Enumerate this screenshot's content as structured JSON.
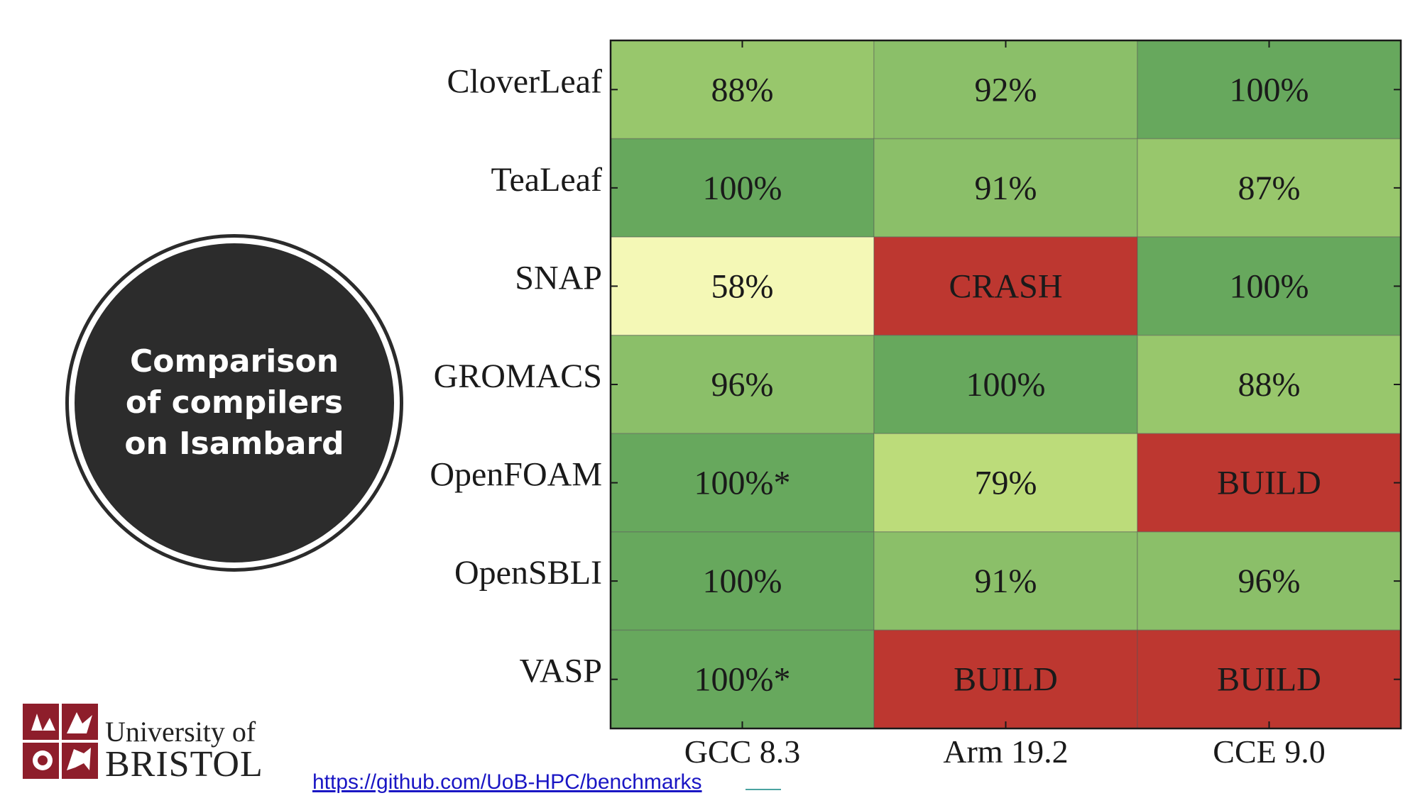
{
  "title_badge": {
    "text": "Comparison\nof compilers\non Isambard"
  },
  "logo": {
    "line1": "University of",
    "line2": "BRISTOL",
    "icon": "university-crest-icon"
  },
  "footer": {
    "link": "https://github.com/UoB-HPC/benchmarks"
  },
  "colors": {
    "highest": "#67a85d",
    "high": "#8bbf69",
    "mid_high": "#98c76c",
    "mid": "#bcdc7a",
    "low": "#f4f8b6",
    "failure": "#bd3730"
  },
  "chart_data": {
    "type": "heatmap",
    "rows": [
      "CloverLeaf",
      "TeaLeaf",
      "SNAP",
      "GROMACS",
      "OpenFOAM",
      "OpenSBLI",
      "VASP"
    ],
    "columns": [
      "GCC 8.3",
      "Arm 19.2",
      "CCE 9.0"
    ],
    "cells": [
      [
        {
          "label": "88%",
          "value": 88
        },
        {
          "label": "92%",
          "value": 92
        },
        {
          "label": "100%",
          "value": 100
        }
      ],
      [
        {
          "label": "100%",
          "value": 100
        },
        {
          "label": "91%",
          "value": 91
        },
        {
          "label": "87%",
          "value": 87
        }
      ],
      [
        {
          "label": "58%",
          "value": 58
        },
        {
          "label": "CRASH",
          "value": null
        },
        {
          "label": "100%",
          "value": 100
        }
      ],
      [
        {
          "label": "96%",
          "value": 96
        },
        {
          "label": "100%",
          "value": 100
        },
        {
          "label": "88%",
          "value": 88
        }
      ],
      [
        {
          "label": "100%*",
          "value": 100
        },
        {
          "label": "79%",
          "value": 79
        },
        {
          "label": "BUILD",
          "value": null
        }
      ],
      [
        {
          "label": "100%",
          "value": 100
        },
        {
          "label": "91%",
          "value": 91
        },
        {
          "label": "96%",
          "value": 96
        }
      ],
      [
        {
          "label": "100%*",
          "value": 100
        },
        {
          "label": "BUILD",
          "value": null
        },
        {
          "label": "BUILD",
          "value": null
        }
      ]
    ]
  }
}
